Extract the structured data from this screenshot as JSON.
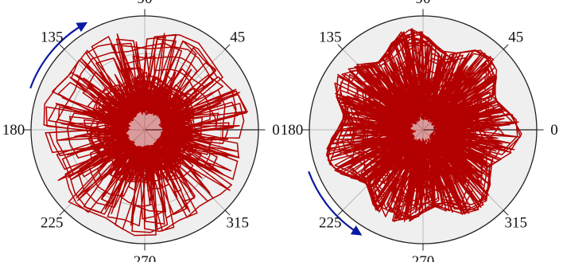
{
  "chart_data": [
    {
      "type": "polar-trajectory",
      "angle_tick_labels": [
        "0",
        "45",
        "90",
        "135",
        "180",
        "225",
        "270",
        "315"
      ],
      "angle_tick_values_deg": [
        0,
        45,
        90,
        135,
        180,
        225,
        270,
        315
      ],
      "radial_grid": [
        0.33,
        0.67
      ],
      "outer_radius": 1.0,
      "grid": true,
      "series_color": "#b30000",
      "arrow_color": "#0a1aa0",
      "rotation_arrow": {
        "direction": "counterclockwise",
        "from_deg": 160,
        "to_deg": 120
      },
      "trajectory": {
        "description_radius_range": [
          0.0,
          0.9
        ],
        "dense_core_radius": 0.26,
        "center": [
          0.0,
          0.0
        ]
      }
    },
    {
      "type": "polar-trajectory",
      "angle_tick_labels": [
        "0",
        "45",
        "90",
        "135",
        "180",
        "225",
        "270",
        "315"
      ],
      "angle_tick_values_deg": [
        0,
        45,
        90,
        135,
        180,
        225,
        270,
        315
      ],
      "radial_grid": [
        0.33,
        0.67
      ],
      "outer_radius": 1.0,
      "grid": true,
      "series_color": "#b30000",
      "arrow_color": "#0a1aa0",
      "rotation_arrow": {
        "direction": "counterclockwise",
        "from_deg": 200,
        "to_deg": 238
      },
      "trajectory": {
        "description_radius_range": [
          0.0,
          0.78
        ],
        "dense_core_radius": 0.22,
        "center": [
          0.0,
          0.0
        ]
      }
    }
  ],
  "colors": {
    "panel_fill": "#efefef",
    "grid_line": "#b8b8b8",
    "axis_line": "#222222"
  }
}
